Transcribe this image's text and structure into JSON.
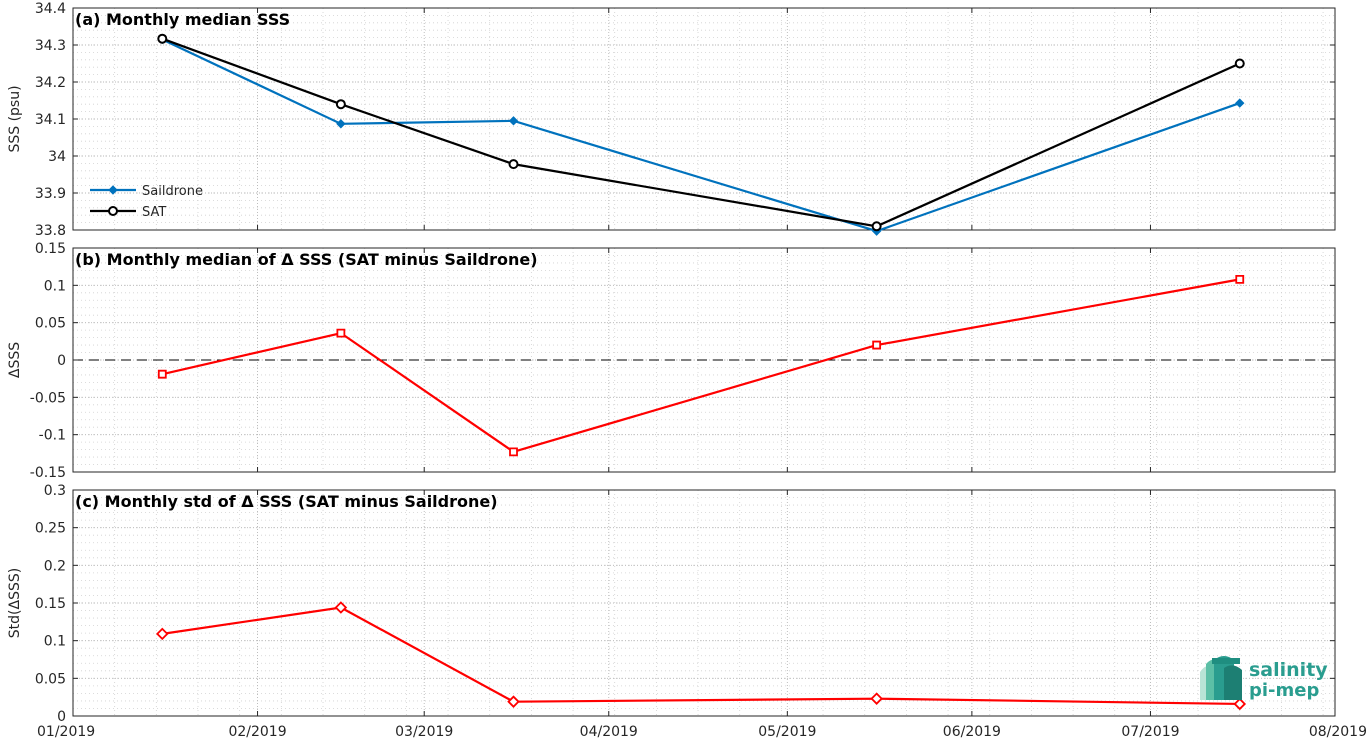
{
  "chart_data": [
    {
      "type": "line",
      "title": "(a) Monthly median SSS",
      "xlabel": "",
      "ylabel": "SSS (psu)",
      "x": [
        "2019-01-16",
        "2019-02-15",
        "2019-03-16",
        "2019-05-16",
        "2019-07-16"
      ],
      "ylim": [
        33.8,
        34.4
      ],
      "yticks": [
        "33.8",
        "33.9",
        "34",
        "34.1",
        "34.2",
        "34.3",
        "34.4"
      ],
      "grid": true,
      "legend_placement": "lower-left",
      "series": [
        {
          "name": "Saildrone",
          "color": "#0072BD",
          "marker": "diamond",
          "values": [
            34.315,
            34.087,
            34.095,
            33.797,
            34.143
          ]
        },
        {
          "name": "SAT",
          "color": "#000000",
          "marker": "circle",
          "values": [
            34.317,
            34.14,
            33.978,
            33.81,
            34.25
          ]
        }
      ]
    },
    {
      "type": "line",
      "title": "(b) Monthly median of Δ SSS (SAT minus Saildrone)",
      "xlabel": "",
      "ylabel": "ΔSSS",
      "x": [
        "2019-01-16",
        "2019-02-15",
        "2019-03-16",
        "2019-05-16",
        "2019-07-16"
      ],
      "ylim": [
        -0.15,
        0.15
      ],
      "yticks": [
        "-0.15",
        "-0.1",
        "-0.05",
        "0",
        "0.05",
        "0.1",
        "0.15"
      ],
      "grid": true,
      "zero_line": "dashed",
      "series": [
        {
          "color": "#FF0000",
          "marker": "square",
          "values": [
            -0.019,
            0.036,
            -0.123,
            0.02,
            0.108
          ]
        }
      ]
    },
    {
      "type": "line",
      "title": "(c) Monthly std of Δ SSS (SAT minus Saildrone)",
      "xlabel": "",
      "ylabel": "Std(ΔSSS)",
      "x": [
        "2019-01-16",
        "2019-02-15",
        "2019-03-16",
        "2019-05-16",
        "2019-07-16"
      ],
      "ylim": [
        0,
        0.3
      ],
      "yticks": [
        "0",
        "0.05",
        "0.1",
        "0.15",
        "0.2",
        "0.25",
        "0.3"
      ],
      "grid": true,
      "series": [
        {
          "color": "#FF0000",
          "marker": "diamond",
          "values": [
            0.109,
            0.144,
            0.019,
            0.023,
            0.016
          ]
        }
      ]
    }
  ],
  "x_axis": {
    "range": [
      "2019-01-01",
      "2019-08-01"
    ],
    "tick_dates": [
      "2019-01-01",
      "2019-02-01",
      "2019-03-01",
      "2019-04-01",
      "2019-05-01",
      "2019-06-01",
      "2019-07-01",
      "2019-08-01"
    ],
    "tick_labels": [
      "01/2019",
      "02/2019",
      "03/2019",
      "04/2019",
      "05/2019",
      "06/2019",
      "07/2019",
      "08/2019"
    ]
  },
  "logo": {
    "line1": "salinity",
    "line2": "pi-mep",
    "color": "#2a9d8f"
  }
}
